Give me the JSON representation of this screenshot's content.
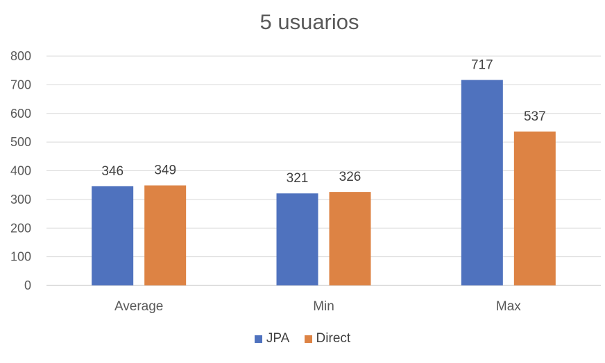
{
  "chart_data": {
    "type": "bar",
    "title": "5 usuarios",
    "categories": [
      "Average",
      "Min",
      "Max"
    ],
    "series": [
      {
        "name": "JPA",
        "values": [
          346,
          321,
          717
        ],
        "color": "#4F72BE"
      },
      {
        "name": "Direct",
        "values": [
          349,
          326,
          537
        ],
        "color": "#DD8344"
      }
    ],
    "ylim": [
      0,
      800
    ],
    "yticks": [
      "0",
      "100",
      "200",
      "300",
      "400",
      "500",
      "600",
      "700",
      "800"
    ],
    "grid": true,
    "legend": "bottom",
    "data_labels": true
  }
}
